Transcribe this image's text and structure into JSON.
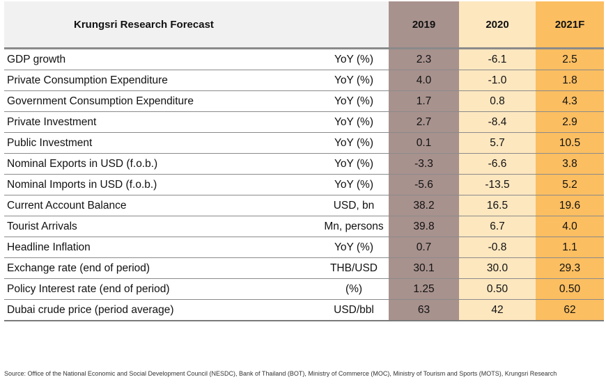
{
  "table": {
    "title": "Krungsri Research Forecast",
    "columns": [
      "2019",
      "2020",
      "2021F"
    ],
    "rows": [
      {
        "label": "GDP growth",
        "unit": "YoY (%)",
        "v2019": "2.3",
        "v2020": "-6.1",
        "v2021": "2.5"
      },
      {
        "label": "Private Consumption Expenditure",
        "unit": "YoY (%)",
        "v2019": "4.0",
        "v2020": "-1.0",
        "v2021": "1.8"
      },
      {
        "label": "Government Consumption Expenditure",
        "unit": "YoY (%)",
        "v2019": "1.7",
        "v2020": "0.8",
        "v2021": "4.3"
      },
      {
        "label": "Private Investment",
        "unit": "YoY (%)",
        "v2019": "2.7",
        "v2020": "-8.4",
        "v2021": "2.9"
      },
      {
        "label": "Public Investment",
        "unit": "YoY (%)",
        "v2019": "0.1",
        "v2020": "5.7",
        "v2021": "10.5"
      },
      {
        "label": "Nominal Exports in USD (f.o.b.)",
        "unit": "YoY (%)",
        "v2019": "-3.3",
        "v2020": "-6.6",
        "v2021": "3.8"
      },
      {
        "label": "Nominal Imports in USD (f.o.b.)",
        "unit": "YoY (%)",
        "v2019": "-5.6",
        "v2020": "-13.5",
        "v2021": "5.2"
      },
      {
        "label": "Current Account Balance",
        "unit": "USD, bn",
        "v2019": "38.2",
        "v2020": "16.5",
        "v2021": "19.6"
      },
      {
        "label": "Tourist Arrivals",
        "unit": "Mn, persons",
        "v2019": "39.8",
        "v2020": "6.7",
        "v2021": "4.0"
      },
      {
        "label": "Headline Inflation",
        "unit": "YoY (%)",
        "v2019": "0.7",
        "v2020": "-0.8",
        "v2021": "1.1"
      },
      {
        "label": "Exchange rate (end of period)",
        "unit": "THB/USD",
        "v2019": "30.1",
        "v2020": "30.0",
        "v2021": "29.3"
      },
      {
        "label": "Policy Interest rate (end of period)",
        "unit": "(%)",
        "v2019": "1.25",
        "v2020": "0.50",
        "v2021": "0.50"
      },
      {
        "label": "Dubai crude price (period average)",
        "unit": "USD/bbl",
        "v2019": "63",
        "v2020": "42",
        "v2021": "62"
      }
    ]
  },
  "colors": {
    "col2019": "#a8928e",
    "col2020": "#fde7bf",
    "col2021": "#fbbe61",
    "header_bg": "#f1f1f1"
  },
  "footnote": "Source: Office of the National Economic and Social Development Council (NESDC), Bank of Thailand (BOT), Ministry of Commerce (MOC), Ministry of Tourism and Sports (MOTS), Krungsri Research"
}
